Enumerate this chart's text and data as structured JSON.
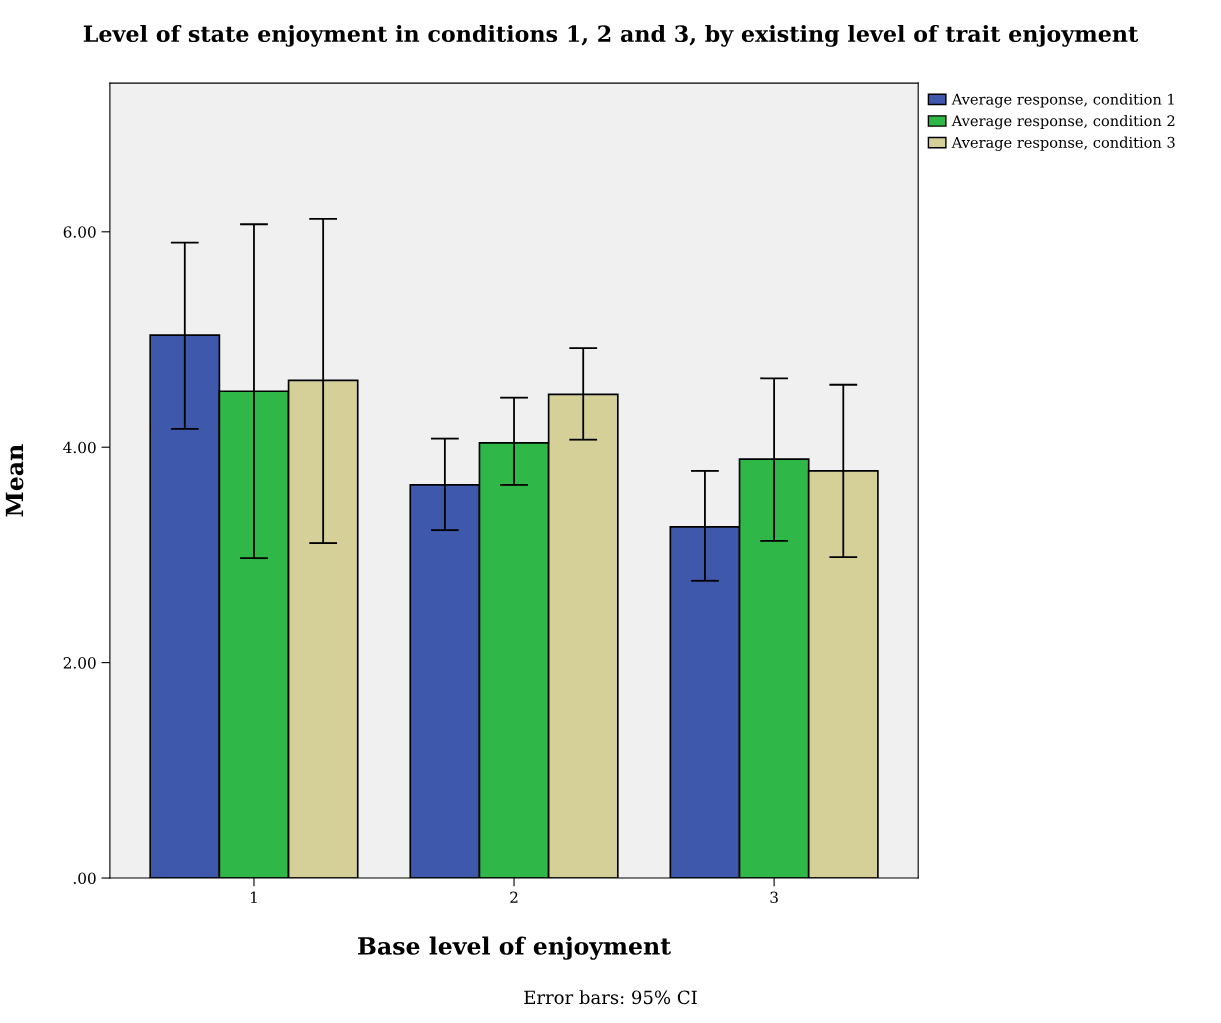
{
  "chart_data": {
    "type": "bar",
    "title": "Level of state enjoyment in conditions 1, 2 and 3, by existing level of trait enjoyment",
    "xlabel": "Base level of enjoyment",
    "ylabel": "Mean",
    "categories": [
      "1",
      "2",
      "3"
    ],
    "series": [
      {
        "name": "Average response, condition 1",
        "color": "#3e58ac",
        "values": [
          5.04,
          3.65,
          3.26
        ],
        "errors": [
          [
            4.17,
            5.9
          ],
          [
            3.23,
            4.08
          ],
          [
            2.76,
            3.78
          ]
        ]
      },
      {
        "name": "Average response, condition 2",
        "color": "#2fb847",
        "values": [
          4.52,
          4.04,
          3.89
        ],
        "errors": [
          [
            2.97,
            6.07
          ],
          [
            3.65,
            4.46
          ],
          [
            3.13,
            4.64
          ]
        ]
      },
      {
        "name": "Average response, condition 3",
        "color": "#d5cf98",
        "values": [
          4.62,
          4.49,
          3.78
        ],
        "errors": [
          [
            3.11,
            6.12
          ],
          [
            4.07,
            4.92
          ],
          [
            2.98,
            4.58
          ]
        ]
      }
    ],
    "ylim": [
      0,
      7.38
    ],
    "yticks": [
      {
        "value": 0,
        "label": ".00"
      },
      {
        "value": 2,
        "label": "2.00"
      },
      {
        "value": 4,
        "label": "4.00"
      },
      {
        "value": 6,
        "label": "6.00"
      }
    ],
    "grid": false,
    "legend": "top right",
    "annotations": [
      "Error bars: 95% CI"
    ]
  }
}
